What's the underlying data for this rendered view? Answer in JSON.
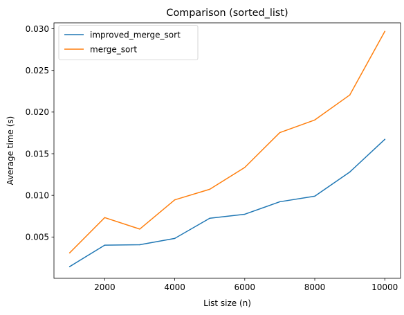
{
  "chart_data": {
    "type": "line",
    "title": "Comparison (sorted_list)",
    "xlabel": "List size (n)",
    "ylabel": "Average time (s)",
    "x": [
      1000,
      2000,
      3000,
      4000,
      5000,
      6000,
      7000,
      8000,
      9000,
      10000
    ],
    "series": [
      {
        "name": "improved_merge_sort",
        "color": "#1f77b4",
        "values": [
          0.00145,
          0.00402,
          0.00407,
          0.00483,
          0.00725,
          0.00773,
          0.00923,
          0.0099,
          0.0128,
          0.01672
        ]
      },
      {
        "name": "merge_sort",
        "color": "#ff7f0e",
        "values": [
          0.0031,
          0.00733,
          0.00595,
          0.00946,
          0.01073,
          0.01335,
          0.01753,
          0.01905,
          0.02205,
          0.02968
        ]
      }
    ],
    "xlim": [
      550,
      10450
    ],
    "ylim": [
      4e-05,
      0.03071
    ],
    "xticks": [
      2000,
      4000,
      6000,
      8000,
      10000
    ],
    "xtick_labels": [
      "2000",
      "4000",
      "6000",
      "8000",
      "10000"
    ],
    "yticks": [
      0.005,
      0.01,
      0.015,
      0.02,
      0.025,
      0.03
    ],
    "ytick_labels": [
      "0.005",
      "0.010",
      "0.015",
      "0.020",
      "0.025",
      "0.030"
    ],
    "grid": false,
    "legend": "top-left"
  }
}
